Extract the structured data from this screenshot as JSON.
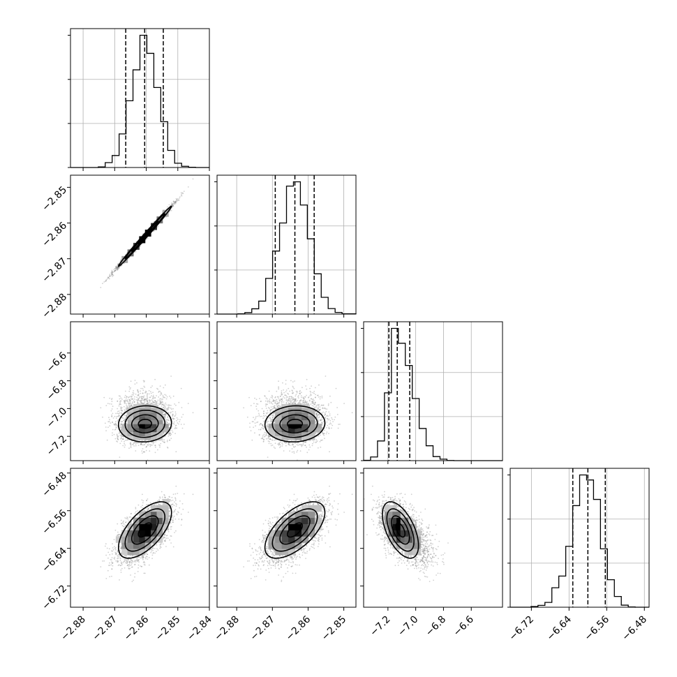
{
  "chart_data": {
    "type": "corner",
    "parameters": [
      {
        "range": [
          -2.884,
          -2.84
        ],
        "ticks": [
          -2.88,
          -2.87,
          -2.86,
          -2.85,
          -2.84
        ],
        "tick_labels": [
          "−2.88",
          "−2.87",
          "−2.86",
          "−2.85",
          "−2.84"
        ],
        "mean": -2.8604,
        "sd": 0.0042,
        "quantiles": [
          -2.8665,
          -2.8605,
          -2.8546
        ]
      },
      {
        "range": [
          -2.8855,
          -2.8466
        ],
        "ticks": [
          -2.88,
          -2.87,
          -2.86,
          -2.85
        ],
        "tick_labels": [
          "−2.88",
          "−2.87",
          "−2.86",
          "−2.85"
        ],
        "mean": -2.8637,
        "sd": 0.0042,
        "quantiles": [
          -2.8692,
          -2.8637,
          -2.8583
        ]
      },
      {
        "range": [
          -7.375,
          -6.375
        ],
        "ticks": [
          -7.2,
          -7.0,
          -6.8,
          -6.6
        ],
        "tick_labels": [
          "−7.2",
          "−7.0",
          "−6.8",
          "−6.6"
        ],
        "mean": -7.11,
        "sd": 0.065,
        "quantiles": [
          -7.193,
          -7.133,
          -7.043
        ]
      },
      {
        "range": [
          -6.765,
          -6.47
        ],
        "ticks": [
          -6.72,
          -6.64,
          -6.56,
          -6.48
        ],
        "tick_labels": [
          "−6.72",
          "−6.64",
          "−6.56",
          "−6.48"
        ],
        "mean": -6.601,
        "sd": 0.03,
        "quantiles": [
          -6.632,
          -6.6,
          -6.563
        ]
      }
    ],
    "pairs": [
      {
        "row": 1,
        "col": 0,
        "correlation": 0.995
      },
      {
        "row": 2,
        "col": 0,
        "correlation": 0.05
      },
      {
        "row": 2,
        "col": 1,
        "correlation": 0.05
      },
      {
        "row": 3,
        "col": 0,
        "correlation": 0.62
      },
      {
        "row": 3,
        "col": 1,
        "correlation": 0.62
      },
      {
        "row": 3,
        "col": 2,
        "correlation": -0.55
      }
    ],
    "contour_levels_sigma": [
      0.5,
      1.0,
      1.5,
      2.0
    ],
    "quantile_probs": [
      0.16,
      0.5,
      0.84
    ],
    "grid": true
  }
}
